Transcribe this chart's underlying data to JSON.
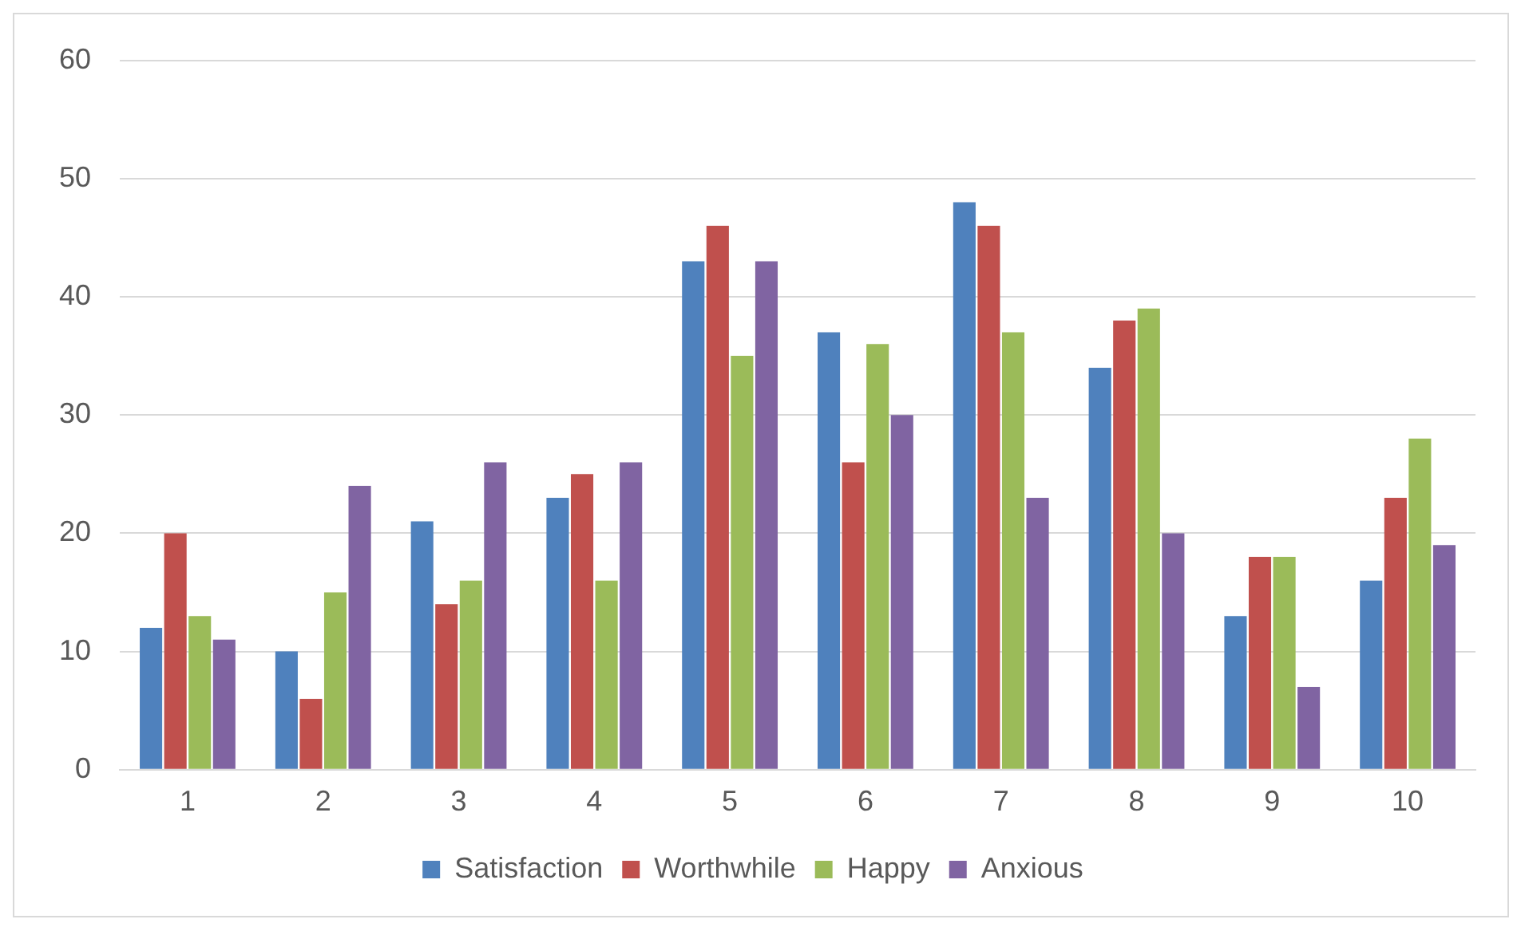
{
  "chart_data": {
    "type": "bar",
    "categories": [
      "1",
      "2",
      "3",
      "4",
      "5",
      "6",
      "7",
      "8",
      "9",
      "10"
    ],
    "series": [
      {
        "name": "Satisfaction",
        "color": "#4f81bd",
        "values": [
          12,
          10,
          21,
          23,
          43,
          37,
          48,
          34,
          13,
          16
        ]
      },
      {
        "name": "Worthwhile",
        "color": "#c0504d",
        "values": [
          20,
          6,
          14,
          25,
          46,
          26,
          46,
          38,
          18,
          23
        ]
      },
      {
        "name": "Happy",
        "color": "#9bbb59",
        "values": [
          13,
          15,
          16,
          16,
          35,
          36,
          37,
          39,
          18,
          28
        ]
      },
      {
        "name": "Anxious",
        "color": "#8064a2",
        "values": [
          11,
          24,
          26,
          26,
          43,
          30,
          23,
          20,
          7,
          19
        ]
      }
    ],
    "ylim": [
      0,
      60
    ],
    "yticks": [
      0,
      10,
      20,
      30,
      40,
      50,
      60
    ],
    "grid": "y",
    "legend": "bottom"
  }
}
